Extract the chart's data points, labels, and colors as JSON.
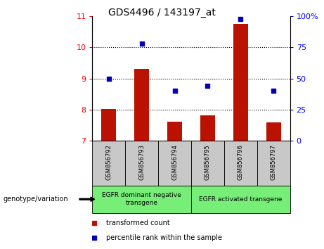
{
  "title": "GDS4496 / 143197_at",
  "samples": [
    "GSM856792",
    "GSM856793",
    "GSM856794",
    "GSM856795",
    "GSM856796",
    "GSM856797"
  ],
  "bar_values": [
    8.02,
    9.3,
    7.62,
    7.82,
    10.75,
    7.58
  ],
  "bar_bottom": 7.0,
  "scatter_percentile": [
    50,
    78,
    40,
    44,
    98,
    40
  ],
  "ylim_left": [
    7,
    11
  ],
  "ylim_right": [
    0,
    100
  ],
  "yticks_left": [
    7,
    8,
    9,
    10,
    11
  ],
  "yticks_right": [
    0,
    25,
    50,
    75,
    100
  ],
  "ytick_right_labels": [
    "0",
    "25",
    "50",
    "75",
    "100%"
  ],
  "bar_color": "#bb1100",
  "scatter_color": "#0000bb",
  "group1_label": "EGFR dominant negative\ntransgene",
  "group2_label": "EGFR activated transgene",
  "group1_samples": [
    0,
    1,
    2
  ],
  "group2_samples": [
    3,
    4,
    5
  ],
  "group_bg_color": "#77ee77",
  "xticklabels_bg": "#c8c8c8",
  "legend_bar_label": "transformed count",
  "legend_scatter_label": "percentile rank within the sample",
  "genotype_label": "genotype/variation",
  "dotted_lines": [
    8,
    9,
    10
  ]
}
